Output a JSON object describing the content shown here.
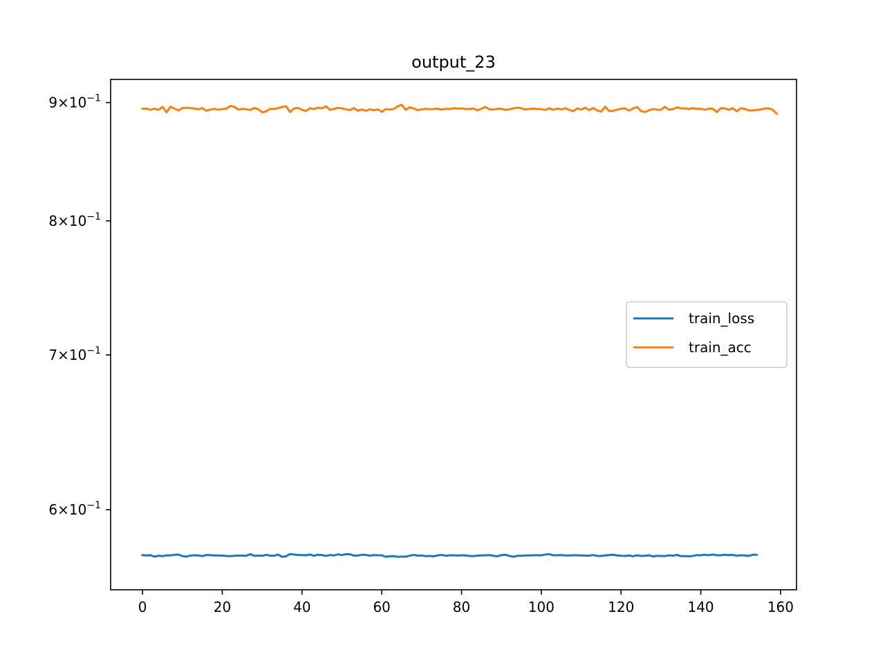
{
  "chart_data": {
    "type": "line",
    "title": "output_23",
    "xlabel": "",
    "ylabel": "",
    "yscale": "log",
    "xlim": [
      -8,
      164
    ],
    "ylim": [
      0.554,
      0.921
    ],
    "x_ticks": [
      0,
      20,
      40,
      60,
      80,
      100,
      120,
      140,
      160
    ],
    "x_tick_labels": [
      "0",
      "20",
      "40",
      "60",
      "80",
      "100",
      "120",
      "140",
      "160"
    ],
    "y_ticks": [
      {
        "value": 0.6,
        "mantissa": "6",
        "base": "10",
        "exp": "−1"
      },
      {
        "value": 0.7,
        "mantissa": "7",
        "base": "10",
        "exp": "−1"
      },
      {
        "value": 0.8,
        "mantissa": "8",
        "base": "10",
        "exp": "−1"
      },
      {
        "value": 0.9,
        "mantissa": "9",
        "base": "10",
        "exp": "−1"
      }
    ],
    "grid": false,
    "legend": {
      "placement": "center-right",
      "entries": [
        "train_loss",
        "train_acc"
      ]
    },
    "series": [
      {
        "name": "train_loss",
        "color": "#1f77b4",
        "x_start": 0,
        "x_step": 1,
        "values": [
          0.5735,
          0.5733,
          0.5734,
          0.5726,
          0.5731,
          0.5729,
          0.5733,
          0.5733,
          0.5737,
          0.5738,
          0.5729,
          0.5726,
          0.5732,
          0.5734,
          0.5733,
          0.5729,
          0.5735,
          0.5735,
          0.5733,
          0.5733,
          0.5732,
          0.573,
          0.5729,
          0.5731,
          0.5732,
          0.5732,
          0.5731,
          0.574,
          0.5731,
          0.5732,
          0.5731,
          0.5736,
          0.5732,
          0.5731,
          0.5738,
          0.5725,
          0.5728,
          0.5741,
          0.5738,
          0.5736,
          0.5735,
          0.5734,
          0.5738,
          0.5731,
          0.5737,
          0.5735,
          0.573,
          0.5735,
          0.5733,
          0.5739,
          0.5735,
          0.574,
          0.574,
          0.5732,
          0.5732,
          0.5737,
          0.5736,
          0.5732,
          0.5735,
          0.5734,
          0.5734,
          0.5725,
          0.5728,
          0.5729,
          0.5725,
          0.5726,
          0.5726,
          0.5731,
          0.5736,
          0.5732,
          0.5733,
          0.5729,
          0.573,
          0.5728,
          0.5733,
          0.5736,
          0.5731,
          0.5734,
          0.5734,
          0.5732,
          0.5734,
          0.5733,
          0.573,
          0.5729,
          0.5732,
          0.5733,
          0.5734,
          0.5735,
          0.5731,
          0.5728,
          0.5735,
          0.5737,
          0.573,
          0.5725,
          0.5731,
          0.5731,
          0.5733,
          0.5733,
          0.5734,
          0.5734,
          0.5734,
          0.5738,
          0.574,
          0.5734,
          0.5734,
          0.5735,
          0.5733,
          0.5733,
          0.5734,
          0.5734,
          0.5733,
          0.5732,
          0.5732,
          0.5735,
          0.573,
          0.573,
          0.5733,
          0.5735,
          0.5737,
          0.5733,
          0.5731,
          0.573,
          0.5733,
          0.5728,
          0.5734,
          0.573,
          0.5731,
          0.5734,
          0.5727,
          0.5731,
          0.573,
          0.5729,
          0.5734,
          0.5731,
          0.5736,
          0.5729,
          0.5729,
          0.5728,
          0.573,
          0.5735,
          0.5734,
          0.5737,
          0.5734,
          0.5738,
          0.5734,
          0.5734,
          0.5737,
          0.5735,
          0.5736,
          0.5731,
          0.5734,
          0.5733,
          0.573,
          0.5737,
          0.5737
        ]
      },
      {
        "name": "train_acc",
        "color": "#ff7f0e",
        "x_start": 0,
        "x_step": 1,
        "values": [
          0.8945,
          0.8946,
          0.8935,
          0.8946,
          0.8935,
          0.8962,
          0.8914,
          0.8963,
          0.8947,
          0.8929,
          0.8952,
          0.8954,
          0.8951,
          0.8947,
          0.894,
          0.8951,
          0.8927,
          0.8938,
          0.8944,
          0.8936,
          0.8942,
          0.8946,
          0.897,
          0.8963,
          0.8937,
          0.8944,
          0.894,
          0.8934,
          0.8952,
          0.8941,
          0.8913,
          0.8922,
          0.8944,
          0.8942,
          0.895,
          0.8961,
          0.8967,
          0.8916,
          0.8948,
          0.8952,
          0.8935,
          0.8925,
          0.895,
          0.8942,
          0.8954,
          0.8949,
          0.8967,
          0.8935,
          0.8943,
          0.8953,
          0.8948,
          0.8939,
          0.8933,
          0.8951,
          0.8927,
          0.8938,
          0.8926,
          0.8941,
          0.8931,
          0.894,
          0.8918,
          0.8942,
          0.8938,
          0.8942,
          0.8968,
          0.898,
          0.8935,
          0.8957,
          0.8948,
          0.8932,
          0.8939,
          0.8945,
          0.894,
          0.8942,
          0.8946,
          0.8937,
          0.8944,
          0.8942,
          0.895,
          0.8946,
          0.8948,
          0.8942,
          0.8943,
          0.8947,
          0.8931,
          0.8946,
          0.8961,
          0.8939,
          0.8938,
          0.8945,
          0.8944,
          0.8935,
          0.8939,
          0.8949,
          0.8955,
          0.8949,
          0.8938,
          0.8943,
          0.8946,
          0.8943,
          0.8942,
          0.8934,
          0.8949,
          0.8935,
          0.8947,
          0.8938,
          0.895,
          0.8935,
          0.8922,
          0.8948,
          0.8937,
          0.8954,
          0.8932,
          0.8951,
          0.893,
          0.892,
          0.8963,
          0.8924,
          0.8927,
          0.8936,
          0.8946,
          0.8948,
          0.8928,
          0.8947,
          0.8961,
          0.8924,
          0.8916,
          0.8932,
          0.8943,
          0.8936,
          0.8935,
          0.8962,
          0.8936,
          0.8941,
          0.8957,
          0.8948,
          0.8948,
          0.8943,
          0.895,
          0.8944,
          0.8944,
          0.8936,
          0.8946,
          0.8945,
          0.8915,
          0.8949,
          0.8948,
          0.8935,
          0.895,
          0.8922,
          0.8949,
          0.8945,
          0.8929,
          0.8931,
          0.8934,
          0.8938,
          0.8947,
          0.8949,
          0.8936,
          0.8902
        ]
      }
    ]
  }
}
